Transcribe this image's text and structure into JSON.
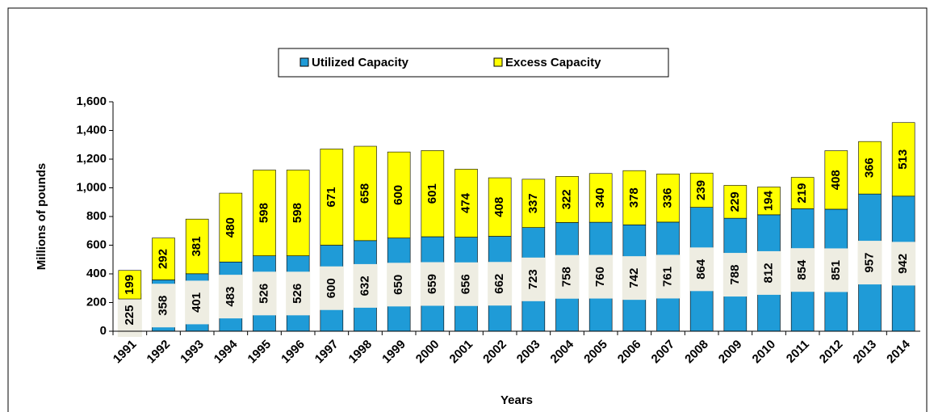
{
  "chart_data": {
    "type": "stacked-bar",
    "categories": [
      "1991",
      "1992",
      "1993",
      "1994",
      "1995",
      "1996",
      "1997",
      "1998",
      "1999",
      "2000",
      "2001",
      "2002",
      "2003",
      "2004",
      "2005",
      "2006",
      "2007",
      "2008",
      "2009",
      "2010",
      "2011",
      "2012",
      "2013",
      "2014"
    ],
    "series": [
      {
        "name": "Utilized Capacity",
        "color": "#1f9bd7",
        "values": [
          225,
          358,
          401,
          483,
          526,
          526,
          600,
          632,
          650,
          659,
          656,
          662,
          723,
          758,
          760,
          742,
          761,
          864,
          788,
          812,
          854,
          851,
          957,
          942
        ]
      },
      {
        "name": "Excess Capacity",
        "color": "#ffff00",
        "values": [
          199,
          292,
          381,
          480,
          598,
          598,
          671,
          658,
          600,
          601,
          474,
          408,
          337,
          322,
          340,
          378,
          336,
          239,
          229,
          194,
          219,
          408,
          366,
          513
        ]
      }
    ],
    "ylim": [
      0,
      1600
    ],
    "yticks": [
      0,
      {
        "value": 200,
        "label": "200"
      },
      {
        "value": 400,
        "label": "400"
      },
      {
        "value": 600,
        "label": "600"
      },
      {
        "value": 800,
        "label": "800"
      },
      {
        "value": 1000,
        "label": "1,000"
      },
      {
        "value": 1200,
        "label": "1,200"
      },
      {
        "value": 1400,
        "label": "1,400"
      },
      {
        "value": 1600,
        "label": "1,600"
      }
    ],
    "ylabel": "Millions of pounds",
    "xlabel": "Years",
    "legend": "top"
  }
}
